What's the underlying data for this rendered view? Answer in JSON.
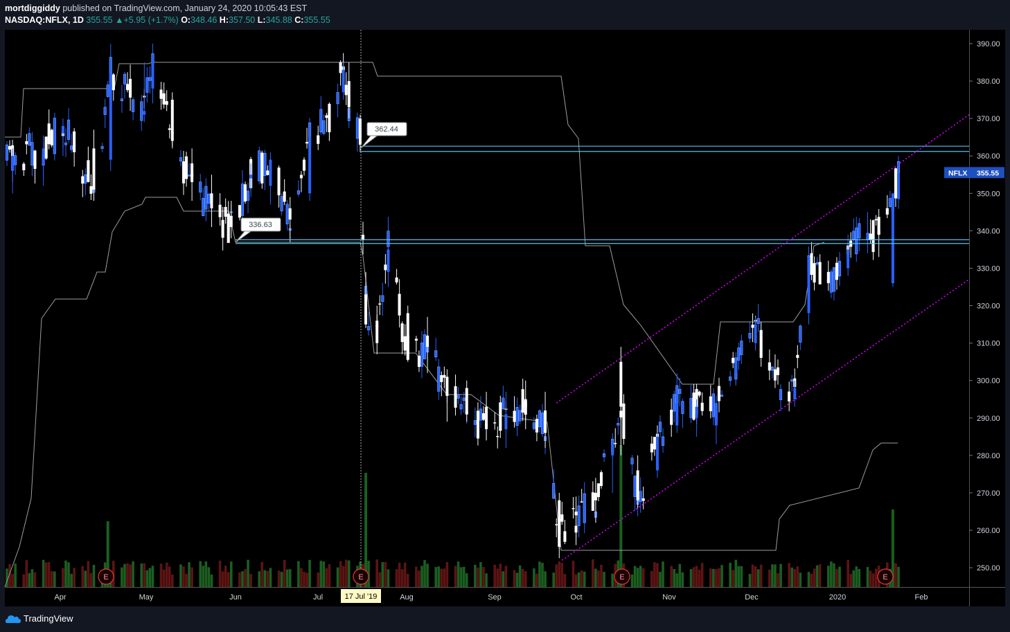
{
  "header": {
    "author": "mortdiggiddy",
    "published": "published on TradingView.com, January 24, 2020 10:05:43 EST",
    "symbol": "NASDAQ:NFLX, 1D",
    "last": "355.55",
    "change": "+5.95 (+1.7%)",
    "open_label": "O:",
    "open": "348.46",
    "high_label": "H:",
    "high": "357.50",
    "low_label": "L:",
    "low": "345.88",
    "close_label": "C:",
    "close": "355.55"
  },
  "footer": {
    "brand": "TradingView"
  },
  "colors": {
    "background": "#000000",
    "up": "#2962ff",
    "down": "#ffffff",
    "vol_up": "#1b5e20",
    "vol_down": "#5d1414",
    "hline": "#4fc3f7",
    "channel": "#d500f9",
    "stop_line": "#9e9e9e",
    "price_tag": "#1e4fbf"
  },
  "chart_data": {
    "type": "candlestick",
    "symbol": "NFLX",
    "ylim": [
      244.5,
      393
    ],
    "y_ticks": [
      "390.00",
      "380.00",
      "370.00",
      "360.00",
      "350.00",
      "340.00",
      "330.00",
      "320.00",
      "310.00",
      "300.00",
      "290.00",
      "280.00",
      "270.00",
      "260.00",
      "250.00"
    ],
    "x_labels": [
      "Apr",
      "May",
      "Jun",
      "Jul",
      "17 Jul '19",
      "Aug",
      "Sep",
      "Oct",
      "Nov",
      "Dec",
      "2020",
      "Feb"
    ],
    "crosshair_label": "17 Jul '19",
    "last_price_tag": {
      "symbol": "NFLX",
      "value": "355.55"
    },
    "price_callouts": [
      "362.44",
      "336.63"
    ],
    "horizontal_levels": [
      [
        361.2,
        362.6
      ],
      [
        336.6,
        337.6
      ]
    ],
    "earnings_marker": "E",
    "channel_lines": [
      {
        "from": [
          "2019-09-24",
          294
        ],
        "to": [
          "2020-01-31",
          371
        ]
      },
      {
        "from": [
          "2019-09-26",
          252
        ],
        "to": [
          "2020-01-31",
          327
        ]
      }
    ],
    "candles": [
      {
        "date": "2019-03-14",
        "o": 356.0,
        "h": 362.0,
        "l": 350.0,
        "c": 360.0
      },
      {
        "date": "2019-03-25",
        "o": 358.0,
        "h": 365.5,
        "l": 352.0,
        "c": 362.0
      },
      {
        "date": "2019-04-01",
        "o": 366.0,
        "h": 370.0,
        "l": 360.0,
        "c": 368.0
      },
      {
        "date": "2019-04-12",
        "o": 362.0,
        "h": 367.0,
        "l": 348.0,
        "c": 351.0
      },
      {
        "date": "2019-04-18",
        "o": 359.0,
        "h": 384.0,
        "l": 356.0,
        "c": 382.0
      },
      {
        "date": "2019-04-30",
        "o": 371.0,
        "h": 385.0,
        "l": 369.0,
        "c": 372.0
      },
      {
        "date": "2019-05-03",
        "o": 378.0,
        "h": 386.0,
        "l": 374.0,
        "c": 385.0
      },
      {
        "date": "2019-05-10",
        "o": 375.0,
        "h": 377.0,
        "l": 362.0,
        "c": 364.0
      },
      {
        "date": "2019-05-17",
        "o": 358.0,
        "h": 362.0,
        "l": 348.0,
        "c": 353.0
      },
      {
        "date": "2019-05-24",
        "o": 350.0,
        "h": 355.0,
        "l": 341.0,
        "c": 346.0
      },
      {
        "date": "2019-05-31",
        "o": 344.0,
        "h": 348.0,
        "l": 338.0,
        "c": 341.0
      },
      {
        "date": "2019-06-07",
        "o": 354.0,
        "h": 358.0,
        "l": 349.0,
        "c": 355.0
      },
      {
        "date": "2019-06-14",
        "o": 352.0,
        "h": 361.0,
        "l": 347.0,
        "c": 359.0
      },
      {
        "date": "2019-06-21",
        "o": 346.0,
        "h": 349.0,
        "l": 337.0,
        "c": 343.0
      },
      {
        "date": "2019-06-28",
        "o": 350.0,
        "h": 368.0,
        "l": 348.0,
        "c": 365.0
      },
      {
        "date": "2019-07-05",
        "o": 371.0,
        "h": 374.0,
        "l": 364.0,
        "c": 370.0
      },
      {
        "date": "2019-07-10",
        "o": 377.0,
        "h": 385.0,
        "l": 375.0,
        "c": 383.0
      },
      {
        "date": "2019-07-12",
        "o": 380.0,
        "h": 385.0,
        "l": 370.0,
        "c": 373.0
      },
      {
        "date": "2019-07-16",
        "o": 370.0,
        "h": 371.0,
        "l": 361.0,
        "c": 363.0
      },
      {
        "date": "2019-07-18",
        "o": 323.0,
        "h": 329.0,
        "l": 314.0,
        "c": 315.0
      },
      {
        "date": "2019-07-22",
        "o": 316.0,
        "h": 320.0,
        "l": 307.0,
        "c": 310.0
      },
      {
        "date": "2019-07-26",
        "o": 329.0,
        "h": 336.0,
        "l": 325.0,
        "c": 335.0
      },
      {
        "date": "2019-08-02",
        "o": 318.0,
        "h": 320.0,
        "l": 305.0,
        "c": 307.0
      },
      {
        "date": "2019-08-09",
        "o": 312.0,
        "h": 317.0,
        "l": 302.0,
        "c": 309.0
      },
      {
        "date": "2019-08-16",
        "o": 301.0,
        "h": 303.0,
        "l": 289.0,
        "c": 296.0
      },
      {
        "date": "2019-08-23",
        "o": 298.0,
        "h": 300.0,
        "l": 289.0,
        "c": 291.0
      },
      {
        "date": "2019-08-30",
        "o": 293.0,
        "h": 297.0,
        "l": 284.0,
        "c": 287.0
      },
      {
        "date": "2019-09-06",
        "o": 287.0,
        "h": 297.0,
        "l": 282.0,
        "c": 291.0
      },
      {
        "date": "2019-09-13",
        "o": 295.0,
        "h": 300.0,
        "l": 287.0,
        "c": 293.0
      },
      {
        "date": "2019-09-20",
        "o": 292.0,
        "h": 297.0,
        "l": 282.0,
        "c": 286.0
      },
      {
        "date": "2019-09-25",
        "o": 268.0,
        "h": 270.0,
        "l": 255.0,
        "c": 259.0
      },
      {
        "date": "2019-10-01",
        "o": 265.0,
        "h": 269.0,
        "l": 258.0,
        "c": 264.0
      },
      {
        "date": "2019-10-08",
        "o": 270.0,
        "h": 274.0,
        "l": 262.0,
        "c": 268.0
      },
      {
        "date": "2019-10-14",
        "o": 280.0,
        "h": 285.0,
        "l": 270.0,
        "c": 283.0
      },
      {
        "date": "2019-10-17",
        "o": 305.0,
        "h": 309.0,
        "l": 280.0,
        "c": 293.0
      },
      {
        "date": "2019-10-23",
        "o": 276.0,
        "h": 280.0,
        "l": 266.0,
        "c": 268.0
      },
      {
        "date": "2019-10-30",
        "o": 276.0,
        "h": 286.0,
        "l": 274.0,
        "c": 285.0
      },
      {
        "date": "2019-11-06",
        "o": 288.0,
        "h": 296.0,
        "l": 286.0,
        "c": 294.0
      },
      {
        "date": "2019-11-13",
        "o": 290.0,
        "h": 295.0,
        "l": 285.0,
        "c": 293.0
      },
      {
        "date": "2019-11-20",
        "o": 288.0,
        "h": 296.0,
        "l": 283.0,
        "c": 294.0
      },
      {
        "date": "2019-11-27",
        "o": 302.0,
        "h": 306.0,
        "l": 299.0,
        "c": 305.0
      },
      {
        "date": "2019-12-04",
        "o": 310.0,
        "h": 317.0,
        "l": 308.0,
        "c": 315.0
      },
      {
        "date": "2019-12-11",
        "o": 303.0,
        "h": 307.0,
        "l": 298.0,
        "c": 300.0
      },
      {
        "date": "2019-12-18",
        "o": 295.0,
        "h": 300.0,
        "l": 293.0,
        "c": 298.0
      },
      {
        "date": "2019-12-23",
        "o": 318.0,
        "h": 333.0,
        "l": 315.0,
        "c": 333.0
      },
      {
        "date": "2019-12-30",
        "o": 329.0,
        "h": 332.0,
        "l": 324.0,
        "c": 326.0
      },
      {
        "date": "2020-01-06",
        "o": 330.0,
        "h": 339.0,
        "l": 328.0,
        "c": 335.0
      },
      {
        "date": "2020-01-13",
        "o": 338.0,
        "h": 345.0,
        "l": 334.0,
        "c": 339.0
      },
      {
        "date": "2020-01-17",
        "o": 340.0,
        "h": 342.0,
        "l": 333.0,
        "c": 339.0
      },
      {
        "date": "2020-01-22",
        "o": 326.0,
        "h": 350.0,
        "l": 325.0,
        "c": 350.0
      },
      {
        "date": "2020-01-24",
        "o": 348.46,
        "h": 357.5,
        "l": 345.88,
        "c": 355.55
      }
    ]
  }
}
